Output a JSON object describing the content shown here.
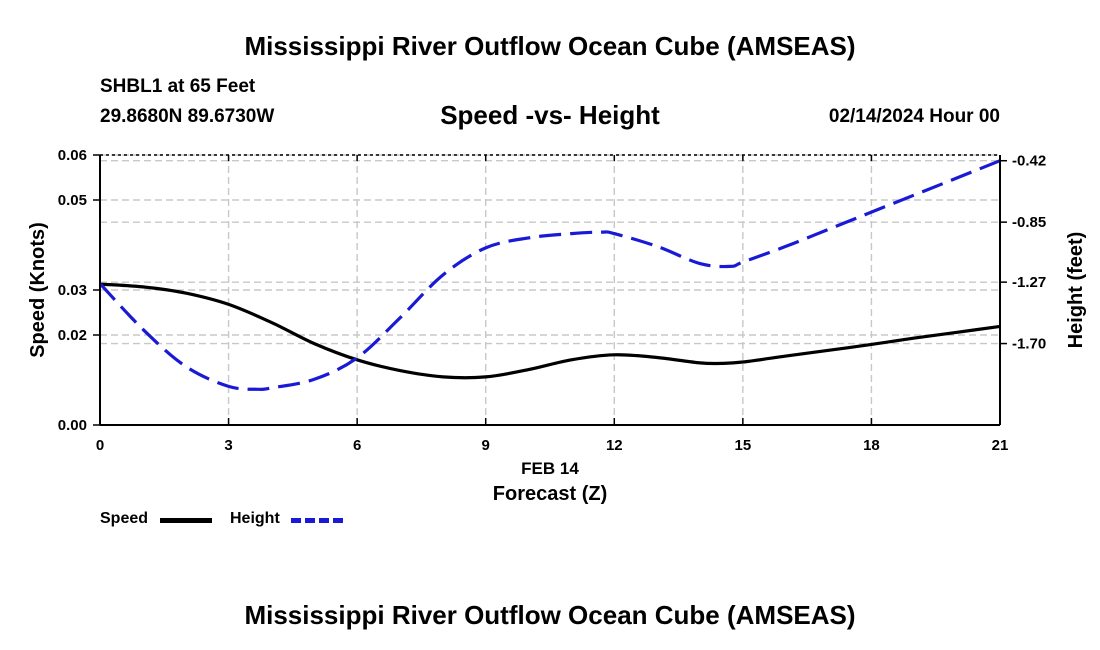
{
  "header": {
    "title": "Mississippi River Outflow Ocean Cube (AMSEAS)",
    "station": "SHBL1 at 65 Feet",
    "coords": "29.8680N  89.6730W",
    "chart_title": "Speed -vs- Height",
    "datetime": "02/14/2024 Hour 00"
  },
  "footer": {
    "title": "Mississippi River Outflow Ocean Cube (AMSEAS)"
  },
  "legend": {
    "speed_label": "Speed",
    "height_label": "Height"
  },
  "colors": {
    "speed": "#000000",
    "height": "#1a1ad6",
    "grid": "#c8c8c8"
  },
  "chart_data": {
    "type": "line",
    "title": "Speed -vs- Height",
    "xlabel": "Forecast (Z)",
    "xlabel_date": "FEB 14",
    "ylabel_left": "Speed (Knots)",
    "ylabel_right": "Height (feet)",
    "xlim": [
      0,
      21
    ],
    "ylim_left": [
      0,
      0.06
    ],
    "ylim_right": [
      -2.27,
      -0.38
    ],
    "x_ticks": [
      0,
      3,
      6,
      9,
      12,
      15,
      18,
      21
    ],
    "x_tick_labels": [
      "0",
      "3",
      "6",
      "9",
      "12",
      "15",
      "18",
      "21"
    ],
    "y_left_ticks": [
      0,
      0.02,
      0.03,
      0.05,
      0.06
    ],
    "y_left_tick_labels": [
      "0.00",
      "0.02",
      "0.03",
      "0.05",
      "0.06"
    ],
    "y_right_ticks": [
      -0.42,
      -0.85,
      -1.27,
      -1.7
    ],
    "y_right_tick_labels": [
      "-0.42",
      "-0.85",
      "-1.27",
      "-1.70"
    ],
    "grid": true,
    "series": [
      {
        "name": "Speed",
        "axis": "left",
        "style": "solid",
        "x": [
          0,
          1,
          2,
          3,
          4,
          5,
          6,
          7,
          8,
          9,
          10,
          11,
          12,
          13,
          14,
          14.5,
          15,
          16,
          17,
          18,
          19,
          20,
          21
        ],
        "values": [
          0.0313,
          0.0307,
          0.0293,
          0.0268,
          0.0228,
          0.0181,
          0.0145,
          0.0121,
          0.0107,
          0.0107,
          0.0123,
          0.0145,
          0.0156,
          0.015,
          0.0138,
          0.0137,
          0.014,
          0.0153,
          0.0166,
          0.0179,
          0.0193,
          0.0206,
          0.0219
        ]
      },
      {
        "name": "Height",
        "axis": "right",
        "style": "dashed",
        "x": [
          0,
          1,
          2,
          3,
          3.7,
          4,
          5,
          6,
          7,
          8,
          9,
          10,
          11,
          11.7,
          12,
          13,
          14,
          14.7,
          15,
          16,
          17,
          18,
          19,
          20,
          21
        ],
        "values": [
          -1.28,
          -1.6,
          -1.86,
          -2.0,
          -2.02,
          -2.01,
          -1.95,
          -1.8,
          -1.52,
          -1.22,
          -1.03,
          -0.96,
          -0.93,
          -0.92,
          -0.93,
          -1.02,
          -1.14,
          -1.16,
          -1.13,
          -1.02,
          -0.9,
          -0.78,
          -0.66,
          -0.54,
          -0.42
        ]
      }
    ]
  }
}
